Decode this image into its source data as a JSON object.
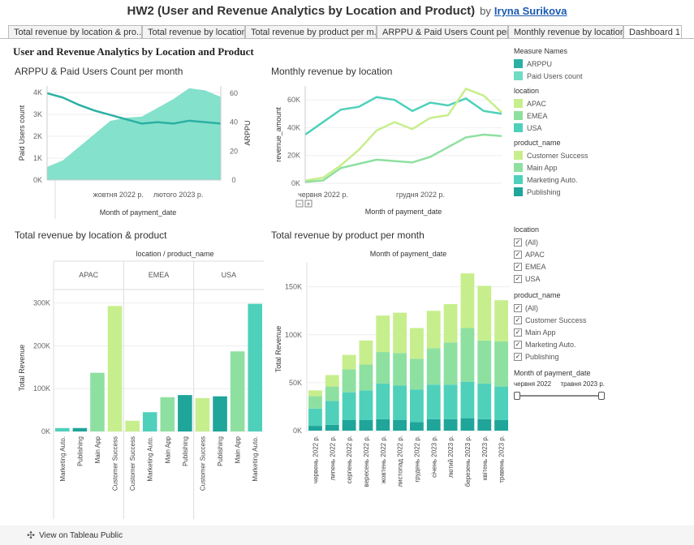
{
  "header": {
    "title": "HW2 (User and Revenue Analytics by Location and Product)",
    "by": "by",
    "author": "Iryna Surikova"
  },
  "tabs": [
    "Total revenue by location & pro...",
    "Total revenue by location",
    "Total revenue by product per m...",
    "ARPPU & Paid Users Count per...",
    "Monthly revenue by location",
    "Dashboard 1"
  ],
  "dashboard_title": "User and Revenue Analytics by Location and Product",
  "colors": {
    "arppu": "#2bb0a3",
    "paid_users": "#6fdcc3",
    "apac": "#c7ee8c",
    "emea": "#8ee0a0",
    "usa": "#4fd0bb",
    "cs": "#c7ee8c",
    "main": "#8ee0a0",
    "mkt": "#4fd0bb",
    "pub": "#1fa59a"
  },
  "legends": {
    "measure_title": "Measure Names",
    "measures": [
      "ARPPU",
      "Paid Users count"
    ],
    "location_title": "location",
    "locations": [
      "APAC",
      "EMEA",
      "USA"
    ],
    "product_title": "product_name",
    "products": [
      "Customer Success",
      "Main App",
      "Marketing Auto.",
      "Publishing"
    ]
  },
  "filters": {
    "location_title": "location",
    "location_items": [
      "(All)",
      "APAC",
      "EMEA",
      "USA"
    ],
    "product_title": "product_name",
    "product_items": [
      "(All)",
      "Customer Success",
      "Main App",
      "Marketing Auto.",
      "Publishing"
    ],
    "month_title": "Month of payment_date",
    "month_start": "червня 2022",
    "month_end": "травня 2023 р."
  },
  "footer": {
    "label": "View on Tableau Public"
  },
  "chart_data": [
    {
      "type": "area",
      "title": "ARPPU & Paid Users Count per month",
      "xlabel": "Month of payment_date",
      "ylabel": "Paid Users count",
      "y2label": "ARPPU",
      "x_ticks": [
        "жовтня 2022 р.",
        "лютого 2023 р."
      ],
      "y_ticks": [
        "0K",
        "1K",
        "2K",
        "3K",
        "4K"
      ],
      "y2_ticks": [
        "0",
        "20",
        "40",
        "60"
      ],
      "ylim": [
        0,
        4300
      ],
      "y2lim": [
        0,
        65
      ],
      "series": [
        {
          "name": "Paid Users count",
          "values": [
            600,
            900,
            1500,
            2100,
            2700,
            2850,
            2900,
            3300,
            3700,
            4200,
            4100,
            3800
          ]
        },
        {
          "name": "ARPPU",
          "values": [
            60,
            57,
            52,
            48,
            45,
            42,
            39,
            40,
            39,
            41,
            40,
            39
          ]
        }
      ]
    },
    {
      "type": "line",
      "title": "Monthly revenue by location",
      "xlabel": "Month of payment_date",
      "ylabel": "revenue_amount",
      "x_ticks": [
        "червня 2022 р.",
        "грудня 2022 р."
      ],
      "y_ticks": [
        "0K",
        "20K",
        "40K",
        "60K"
      ],
      "ylim": [
        0,
        70000
      ],
      "series": [
        {
          "name": "USA",
          "values": [
            35000,
            44000,
            53000,
            55000,
            62000,
            60000,
            52000,
            58000,
            56000,
            61000,
            52000,
            50000
          ]
        },
        {
          "name": "APAC",
          "values": [
            2000,
            4000,
            13000,
            24000,
            38000,
            44000,
            39000,
            47000,
            49000,
            68000,
            63000,
            51000
          ]
        },
        {
          "name": "EMEA",
          "values": [
            1000,
            2000,
            11000,
            14000,
            17000,
            16000,
            15000,
            19000,
            26000,
            33000,
            35000,
            34000
          ]
        }
      ]
    },
    {
      "type": "bar",
      "title": "Total revenue by location & product",
      "header": "location / product_name",
      "ylabel": "Total Revenue",
      "y_ticks": [
        "0K",
        "100K",
        "200K",
        "300K"
      ],
      "ylim": [
        0,
        320000
      ],
      "groups": [
        {
          "name": "APAC",
          "categories": [
            "Marketing Auto.",
            "Publishing",
            "Main App",
            "Customer Success"
          ],
          "values": [
            8000,
            8000,
            137000,
            293000
          ]
        },
        {
          "name": "EMEA",
          "categories": [
            "Customer Success",
            "Marketing Auto.",
            "Main App",
            "Publishing"
          ],
          "values": [
            25000,
            45000,
            80000,
            85000
          ]
        },
        {
          "name": "USA",
          "categories": [
            "Customer Success",
            "Publishing",
            "Main App",
            "Marketing Auto."
          ],
          "values": [
            78000,
            82000,
            187000,
            298000
          ]
        }
      ]
    },
    {
      "type": "bar",
      "title": "Total revenue by product per month",
      "header": "Month of payment_date",
      "ylabel": "Total Revenue",
      "y_ticks": [
        "0K",
        "50K",
        "100K",
        "150K"
      ],
      "ylim": [
        0,
        170000
      ],
      "categories": [
        "червень 2022 р.",
        "липень 2022 р.",
        "серпень 2022 р.",
        "вересень 2022 р.",
        "жовтень 2022 р.",
        "листопад 2022 р.",
        "грудень 2022 р.",
        "січень 2023 р.",
        "лютий 2023 р.",
        "березень 2023 р.",
        "квітень 2023 р.",
        "травень 2023 р."
      ],
      "series": [
        {
          "name": "Publishing",
          "values": [
            5000,
            6000,
            11000,
            11000,
            12000,
            11000,
            9000,
            12000,
            12000,
            13000,
            12000,
            11000
          ]
        },
        {
          "name": "Marketing Auto.",
          "values": [
            18000,
            25000,
            29000,
            31000,
            37000,
            36000,
            34000,
            36000,
            36000,
            38000,
            37000,
            35000
          ]
        },
        {
          "name": "Main App",
          "values": [
            13000,
            15000,
            24000,
            27000,
            33000,
            34000,
            32000,
            38000,
            44000,
            56000,
            45000,
            47000
          ]
        },
        {
          "name": "Customer Success",
          "values": [
            6000,
            12000,
            15000,
            25000,
            38000,
            42000,
            32000,
            39000,
            40000,
            57000,
            57000,
            43000
          ]
        }
      ]
    }
  ]
}
